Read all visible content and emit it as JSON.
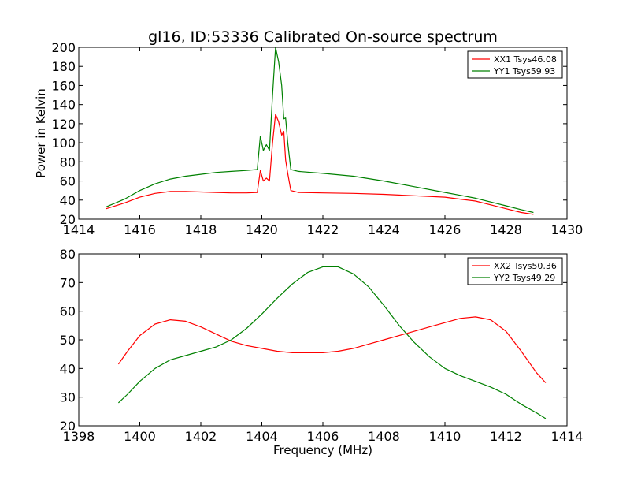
{
  "chart_data": [
    {
      "type": "line",
      "title": "gl16, ID:53336 Calibrated On-source spectrum",
      "xlabel": "",
      "ylabel": "Power in Kelvin",
      "xlim": [
        1414,
        1430
      ],
      "ylim": [
        20,
        200
      ],
      "xticks": [
        1414,
        1416,
        1418,
        1420,
        1422,
        1424,
        1426,
        1428,
        1430
      ],
      "yticks": [
        20,
        40,
        60,
        80,
        100,
        120,
        140,
        160,
        180,
        200
      ],
      "legend_position": "top-right",
      "series": [
        {
          "name": "XX1 Tsys46.08",
          "color": "#ff0000",
          "x": [
            1414.9,
            1415.5,
            1416.0,
            1416.5,
            1417.0,
            1417.5,
            1418.0,
            1418.5,
            1419.0,
            1419.5,
            1419.85,
            1419.95,
            1420.05,
            1420.15,
            1420.25,
            1420.35,
            1420.45,
            1420.55,
            1420.65,
            1420.72,
            1420.78,
            1420.85,
            1420.95,
            1421.2,
            1422.0,
            1423.0,
            1424.0,
            1425.0,
            1426.0,
            1426.5,
            1427.0,
            1427.5,
            1428.0,
            1428.5,
            1428.9
          ],
          "y": [
            31,
            37,
            43,
            47,
            49,
            49,
            48.5,
            48,
            47.5,
            47.5,
            48,
            71,
            60,
            63,
            60,
            100,
            130,
            122,
            108,
            112,
            82,
            68,
            50,
            48,
            47.5,
            47,
            46,
            44.5,
            43,
            41,
            39,
            35,
            31,
            27,
            25
          ]
        },
        {
          "name": "YY1 Tsys59.93",
          "color": "#008000",
          "x": [
            1414.9,
            1415.5,
            1416.0,
            1416.5,
            1417.0,
            1417.5,
            1418.0,
            1418.5,
            1419.0,
            1419.5,
            1419.85,
            1419.95,
            1420.05,
            1420.15,
            1420.25,
            1420.35,
            1420.45,
            1420.55,
            1420.65,
            1420.72,
            1420.78,
            1420.85,
            1420.95,
            1421.2,
            1422.0,
            1423.0,
            1424.0,
            1425.0,
            1426.0,
            1426.5,
            1427.0,
            1427.5,
            1428.0,
            1428.5,
            1428.9
          ],
          "y": [
            33,
            41,
            50,
            57,
            62,
            65,
            67,
            69,
            70,
            71,
            72,
            107,
            92,
            98,
            92,
            150,
            200,
            185,
            160,
            125,
            126,
            100,
            72,
            70,
            68,
            65,
            60,
            54,
            48,
            45,
            42,
            38,
            34,
            30,
            27
          ]
        }
      ]
    },
    {
      "type": "line",
      "title": "",
      "xlabel": "Frequency (MHz)",
      "ylabel": "",
      "xlim": [
        1398,
        1414
      ],
      "ylim": [
        20,
        80
      ],
      "xticks": [
        1398,
        1400,
        1402,
        1404,
        1406,
        1408,
        1410,
        1412,
        1414
      ],
      "yticks": [
        20,
        30,
        40,
        50,
        60,
        70,
        80
      ],
      "legend_position": "top-right",
      "series": [
        {
          "name": "XX2 Tsys50.36",
          "color": "#ff0000",
          "x": [
            1399.3,
            1399.6,
            1400.0,
            1400.5,
            1401.0,
            1401.5,
            1402.0,
            1402.5,
            1403.0,
            1403.5,
            1404.0,
            1404.5,
            1405.0,
            1405.5,
            1406.0,
            1406.5,
            1407.0,
            1407.5,
            1408.0,
            1408.5,
            1409.0,
            1409.5,
            1410.0,
            1410.5,
            1411.0,
            1411.5,
            1412.0,
            1412.5,
            1413.0,
            1413.3
          ],
          "y": [
            41.5,
            46,
            51.5,
            55.5,
            57,
            56.5,
            54.5,
            52,
            49.5,
            48,
            47,
            46,
            45.5,
            45.5,
            45.5,
            46,
            47,
            48.5,
            50,
            51.5,
            53,
            54.5,
            56,
            57.5,
            58,
            57,
            53,
            46,
            38.5,
            35
          ]
        },
        {
          "name": "YY2 Tsys49.29",
          "color": "#008000",
          "x": [
            1399.3,
            1399.6,
            1400.0,
            1400.5,
            1401.0,
            1401.5,
            1402.0,
            1402.5,
            1403.0,
            1403.5,
            1404.0,
            1404.5,
            1405.0,
            1405.5,
            1406.0,
            1406.5,
            1407.0,
            1407.5,
            1408.0,
            1408.5,
            1409.0,
            1409.5,
            1410.0,
            1410.5,
            1411.0,
            1411.5,
            1412.0,
            1412.5,
            1413.0,
            1413.3
          ],
          "y": [
            28,
            31,
            35.5,
            40,
            43,
            44.5,
            46,
            47.5,
            50,
            54,
            59,
            64.5,
            69.5,
            73.5,
            75.5,
            75.5,
            73,
            68.5,
            62,
            55,
            49,
            44,
            40,
            37.5,
            35.5,
            33.5,
            31,
            27.5,
            24.5,
            22.5
          ]
        }
      ]
    }
  ]
}
